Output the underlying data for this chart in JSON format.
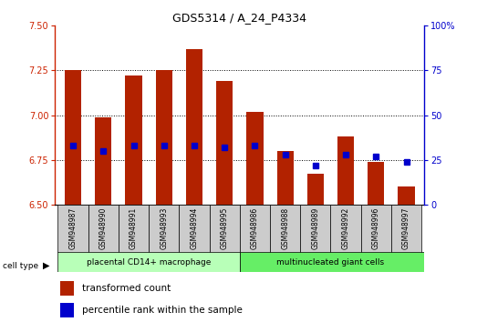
{
  "title": "GDS5314 / A_24_P4334",
  "samples": [
    "GSM948987",
    "GSM948990",
    "GSM948991",
    "GSM948993",
    "GSM948994",
    "GSM948995",
    "GSM948986",
    "GSM948988",
    "GSM948989",
    "GSM948992",
    "GSM948996",
    "GSM948997"
  ],
  "transformed_count": [
    7.25,
    6.99,
    7.22,
    7.25,
    7.37,
    7.19,
    7.02,
    6.8,
    6.67,
    6.88,
    6.74,
    6.6
  ],
  "percentile_rank": [
    33,
    30,
    33,
    33,
    33,
    32,
    33,
    28,
    22,
    28,
    27,
    24
  ],
  "ylim_left": [
    6.5,
    7.5
  ],
  "ylim_right": [
    0,
    100
  ],
  "yticks_left": [
    6.5,
    6.75,
    7.0,
    7.25,
    7.5
  ],
  "yticks_right": [
    0,
    25,
    50,
    75,
    100
  ],
  "bar_color": "#b22200",
  "dot_color": "#0000cc",
  "group1_label": "placental CD14+ macrophage",
  "group2_label": "multinucleated giant cells",
  "group1_count": 6,
  "group2_count": 6,
  "cell_type_label": "cell type",
  "legend1": "transformed count",
  "legend2": "percentile rank within the sample",
  "group1_bg": "#b8ffb8",
  "group2_bg": "#66ee66",
  "tick_bg": "#cccccc",
  "baseline": 6.5,
  "gridlines": [
    6.75,
    7.0,
    7.25
  ],
  "title_fontsize": 9,
  "tick_fontsize": 7,
  "legend_fontsize": 7.5
}
